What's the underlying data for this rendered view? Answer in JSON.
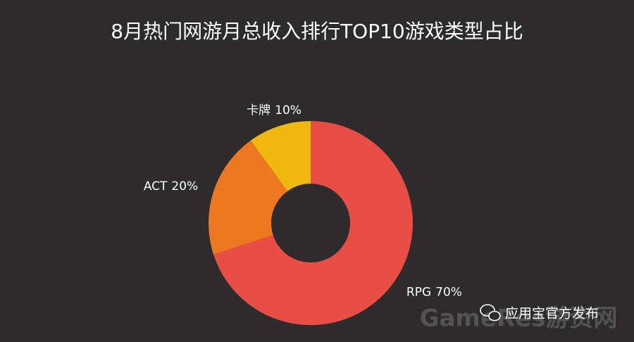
{
  "chart_data": {
    "type": "donut",
    "title": "8月热门网游月总收入排行TOP10游戏类型占比",
    "categories": [
      "RPG",
      "ACT",
      "卡牌"
    ],
    "values": [
      70,
      20,
      10
    ],
    "value_labels": [
      "70%",
      "20%",
      "10%"
    ],
    "colors": [
      "#e84e45",
      "#ee7722",
      "#efb80f"
    ],
    "source": "应用宝官方发布",
    "watermark": "GameRes游资网"
  }
}
